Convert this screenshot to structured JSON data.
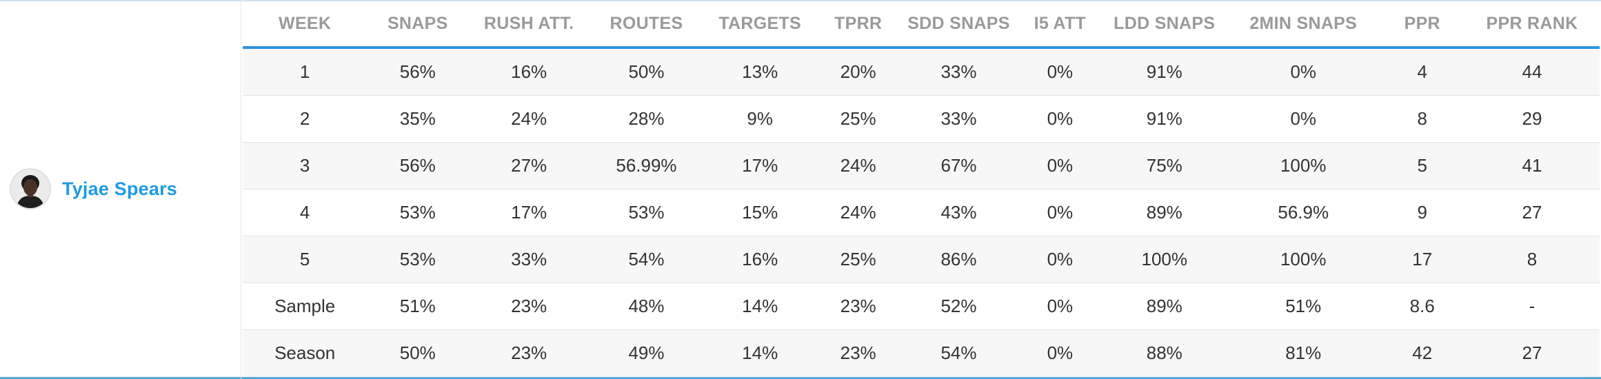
{
  "player": {
    "name": "Tyjae Spears",
    "avatar_icon": "player-headshot-icon"
  },
  "table": {
    "columns": [
      "WEEK",
      "SNAPS",
      "RUSH ATT.",
      "ROUTES",
      "TARGETS",
      "TPRR",
      "SDD SNAPS",
      "I5 ATT",
      "LDD SNAPS",
      "2MIN SNAPS",
      "PPR",
      "PPR RANK"
    ],
    "rows": [
      [
        "1",
        "56%",
        "16%",
        "50%",
        "13%",
        "20%",
        "33%",
        "0%",
        "91%",
        "0%",
        "4",
        "44"
      ],
      [
        "2",
        "35%",
        "24%",
        "28%",
        "9%",
        "25%",
        "33%",
        "0%",
        "91%",
        "0%",
        "8",
        "29"
      ],
      [
        "3",
        "56%",
        "27%",
        "56.99%",
        "17%",
        "24%",
        "67%",
        "0%",
        "75%",
        "100%",
        "5",
        "41"
      ],
      [
        "4",
        "53%",
        "17%",
        "53%",
        "15%",
        "24%",
        "43%",
        "0%",
        "89%",
        "56.9%",
        "9",
        "27"
      ],
      [
        "5",
        "53%",
        "33%",
        "54%",
        "16%",
        "25%",
        "86%",
        "0%",
        "100%",
        "100%",
        "17",
        "8"
      ],
      [
        "Sample",
        "51%",
        "23%",
        "48%",
        "14%",
        "23%",
        "52%",
        "0%",
        "89%",
        "51%",
        "8.6",
        "-"
      ],
      [
        "Season",
        "50%",
        "23%",
        "49%",
        "14%",
        "23%",
        "54%",
        "0%",
        "88%",
        "81%",
        "42",
        "27"
      ]
    ]
  },
  "colors": {
    "accent": "#2b95dc",
    "player_link": "#1e9be6",
    "header_text": "#9a9a9a",
    "row_stripe": "#f7f7f7"
  }
}
